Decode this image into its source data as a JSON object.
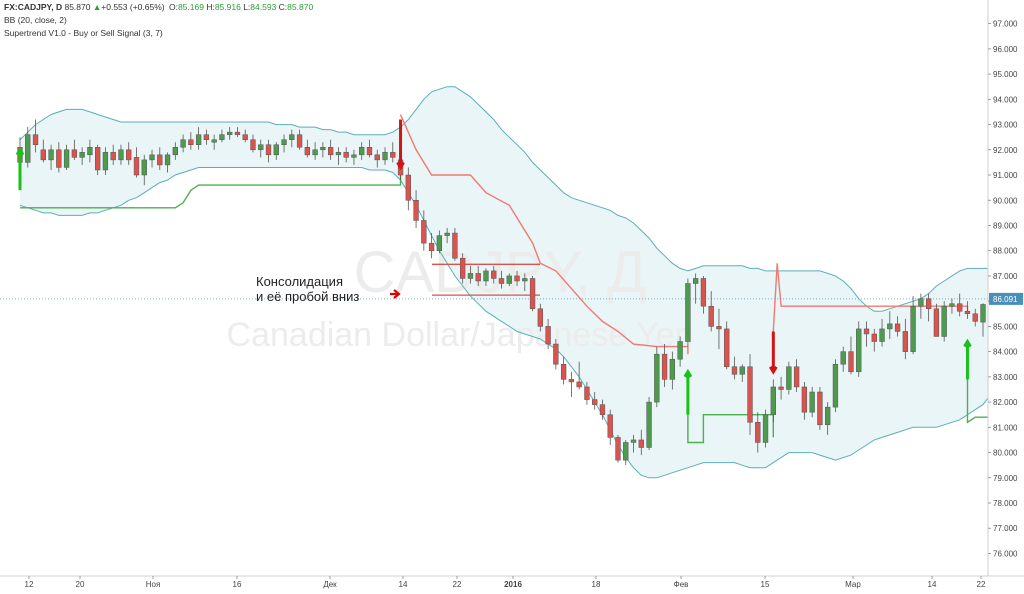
{
  "header": {
    "symbol": "FX:CADJPY, D",
    "last": "85.870",
    "change": "+0.553 (+0.65%)",
    "o_label": "O:",
    "o": "85.169",
    "h_label": "H:",
    "h": "85.916",
    "l_label": "L:",
    "l": "84.593",
    "c_label": "C:",
    "c": "85.870",
    "indicator1": "BB (20, close, 2)",
    "indicator2": "Supertrend V1.0 - Buy or Sell Signal (3, 7)"
  },
  "watermark": {
    "line1": "CADJPY, Д",
    "line2": "Canadian Dollar/Japanese Yen"
  },
  "annotation": {
    "line1": "Консолидация",
    "line2": "и её пробой вниз"
  },
  "price_label": "86.091",
  "colors": {
    "up": "#4e9a4e",
    "down": "#d9534f",
    "band": "#5aafb7",
    "band_fill": "#e9f5f6",
    "supertrend_up": "#4caf50",
    "supertrend_down": "#f07a72",
    "signal_buy": "#19c219",
    "signal_sell": "#d21414",
    "price_label_bg": "#4a8fb8",
    "consolidation": "#d9534f"
  },
  "chart_data": {
    "type": "candlestick",
    "title": "FX:CADJPY, D",
    "ylim": [
      75.0,
      97.5
    ],
    "yticks": [
      "76.000",
      "77.000",
      "78.000",
      "79.000",
      "80.000",
      "81.000",
      "82.000",
      "83.000",
      "84.000",
      "85.000",
      "86.000",
      "87.000",
      "88.000",
      "89.000",
      "90.000",
      "91.000",
      "92.000",
      "93.000",
      "94.000",
      "95.000",
      "96.000",
      "97.000"
    ],
    "xticks": [
      "12",
      "20",
      "Ноя",
      "16",
      "Дек",
      "14",
      "22",
      "2016",
      "18",
      "Фев",
      "15",
      "Мар",
      "14",
      "22"
    ],
    "candles": [
      [
        92.1,
        92.5,
        90.7,
        91.5
      ],
      [
        91.5,
        92.9,
        91.3,
        92.6
      ],
      [
        92.6,
        93.2,
        91.9,
        92.2
      ],
      [
        92.0,
        92.4,
        91.5,
        91.6
      ],
      [
        91.6,
        92.2,
        91.2,
        92.0
      ],
      [
        92.0,
        92.3,
        91.1,
        91.3
      ],
      [
        91.3,
        92.2,
        91.2,
        92.0
      ],
      [
        92.0,
        92.4,
        91.6,
        91.7
      ],
      [
        91.7,
        92.1,
        91.4,
        91.9
      ],
      [
        91.8,
        92.4,
        91.5,
        92.1
      ],
      [
        92.1,
        92.2,
        91.0,
        91.2
      ],
      [
        91.2,
        92.1,
        91.0,
        91.9
      ],
      [
        91.9,
        92.2,
        91.4,
        91.6
      ],
      [
        91.6,
        92.2,
        91.4,
        92.0
      ],
      [
        92.0,
        92.3,
        91.4,
        91.6
      ],
      [
        91.7,
        92.1,
        90.9,
        91.0
      ],
      [
        91.0,
        91.8,
        90.6,
        91.6
      ],
      [
        91.6,
        92.0,
        91.3,
        91.8
      ],
      [
        91.8,
        92.1,
        91.2,
        91.4
      ],
      [
        91.4,
        91.9,
        91.1,
        91.8
      ],
      [
        91.8,
        92.3,
        91.6,
        92.1
      ],
      [
        92.1,
        92.6,
        91.9,
        92.4
      ],
      [
        92.4,
        92.7,
        92.0,
        92.2
      ],
      [
        92.2,
        92.9,
        92.0,
        92.6
      ],
      [
        92.6,
        92.8,
        92.2,
        92.4
      ],
      [
        92.3,
        92.6,
        92.0,
        92.4
      ],
      [
        92.4,
        92.8,
        92.3,
        92.6
      ],
      [
        92.6,
        92.9,
        92.4,
        92.7
      ],
      [
        92.7,
        92.9,
        92.5,
        92.6
      ],
      [
        92.6,
        92.8,
        92.3,
        92.4
      ],
      [
        92.4,
        92.6,
        91.9,
        92.0
      ],
      [
        92.0,
        92.4,
        91.7,
        92.2
      ],
      [
        92.2,
        92.4,
        91.5,
        91.8
      ],
      [
        91.8,
        92.3,
        91.6,
        92.2
      ],
      [
        92.2,
        92.6,
        91.9,
        92.4
      ],
      [
        92.4,
        92.8,
        92.1,
        92.6
      ],
      [
        92.6,
        92.8,
        92.0,
        92.1
      ],
      [
        92.1,
        92.4,
        91.7,
        91.8
      ],
      [
        91.8,
        92.3,
        91.6,
        92.0
      ],
      [
        92.0,
        92.3,
        91.7,
        92.1
      ],
      [
        92.1,
        92.4,
        91.6,
        91.8
      ],
      [
        91.8,
        92.1,
        91.4,
        91.9
      ],
      [
        91.9,
        92.1,
        91.5,
        91.7
      ],
      [
        91.7,
        92.0,
        91.4,
        91.8
      ],
      [
        91.8,
        92.3,
        91.6,
        92.1
      ],
      [
        92.1,
        92.4,
        91.7,
        91.8
      ],
      [
        91.8,
        92.0,
        91.3,
        91.6
      ],
      [
        91.6,
        92.1,
        91.4,
        91.9
      ],
      [
        91.9,
        92.3,
        91.5,
        91.7
      ],
      [
        91.6,
        91.9,
        90.8,
        91.0
      ],
      [
        91.0,
        91.3,
        89.6,
        90.0
      ],
      [
        90.0,
        90.4,
        88.9,
        89.2
      ],
      [
        89.2,
        89.6,
        88.0,
        88.3
      ],
      [
        88.3,
        88.7,
        87.7,
        88.0
      ],
      [
        88.0,
        88.8,
        87.9,
        88.6
      ],
      [
        88.6,
        88.9,
        88.3,
        88.7
      ],
      [
        88.7,
        88.9,
        87.6,
        87.7
      ],
      [
        87.7,
        87.9,
        86.7,
        86.9
      ],
      [
        86.9,
        87.4,
        86.7,
        87.1
      ],
      [
        87.1,
        87.4,
        86.6,
        86.8
      ],
      [
        86.8,
        87.3,
        86.6,
        87.2
      ],
      [
        87.2,
        87.4,
        86.7,
        86.9
      ],
      [
        86.9,
        87.2,
        86.5,
        86.7
      ],
      [
        86.7,
        87.1,
        86.6,
        87.0
      ],
      [
        87.0,
        87.2,
        86.6,
        86.8
      ],
      [
        86.8,
        87.1,
        86.4,
        86.9
      ],
      [
        86.9,
        87.0,
        85.6,
        85.7
      ],
      [
        85.7,
        85.9,
        84.8,
        85.0
      ],
      [
        85.0,
        85.3,
        84.1,
        84.3
      ],
      [
        84.3,
        84.5,
        83.3,
        83.5
      ],
      [
        83.5,
        83.8,
        82.7,
        82.9
      ],
      [
        82.9,
        83.2,
        82.2,
        82.8
      ],
      [
        82.8,
        83.6,
        82.5,
        82.6
      ],
      [
        82.6,
        82.8,
        81.9,
        82.1
      ],
      [
        82.1,
        82.4,
        81.7,
        81.9
      ],
      [
        81.9,
        82.1,
        81.3,
        81.5
      ],
      [
        81.5,
        81.7,
        80.3,
        80.6
      ],
      [
        80.6,
        80.7,
        79.6,
        79.7
      ],
      [
        79.7,
        80.5,
        79.5,
        80.4
      ],
      [
        80.4,
        80.7,
        80.0,
        80.5
      ],
      [
        80.5,
        80.9,
        79.9,
        80.2
      ],
      [
        80.2,
        82.2,
        80.1,
        82.0
      ],
      [
        82.0,
        84.2,
        81.8,
        83.9
      ],
      [
        83.9,
        84.3,
        82.6,
        82.9
      ],
      [
        82.9,
        84.0,
        82.5,
        83.7
      ],
      [
        83.7,
        84.6,
        83.4,
        84.4
      ],
      [
        84.4,
        86.9,
        84.2,
        86.7
      ],
      [
        86.7,
        87.1,
        85.9,
        86.9
      ],
      [
        86.9,
        87.0,
        85.5,
        85.8
      ],
      [
        85.8,
        86.4,
        84.8,
        85.0
      ],
      [
        85.0,
        85.7,
        84.1,
        84.9
      ],
      [
        84.9,
        85.2,
        83.3,
        83.4
      ],
      [
        83.4,
        83.8,
        82.9,
        83.1
      ],
      [
        83.1,
        83.5,
        82.8,
        83.4
      ],
      [
        83.4,
        83.9,
        80.7,
        81.2
      ],
      [
        81.2,
        81.6,
        80.0,
        80.4
      ],
      [
        80.4,
        81.7,
        80.2,
        81.5
      ],
      [
        81.5,
        82.9,
        81.2,
        82.6
      ],
      [
        82.6,
        83.0,
        82.1,
        82.5
      ],
      [
        82.5,
        83.6,
        82.3,
        83.4
      ],
      [
        83.4,
        83.7,
        82.4,
        82.6
      ],
      [
        82.6,
        82.8,
        81.3,
        81.6
      ],
      [
        81.6,
        82.6,
        81.4,
        82.4
      ],
      [
        82.4,
        82.6,
        80.9,
        81.1
      ],
      [
        81.1,
        82.0,
        80.7,
        81.8
      ],
      [
        81.8,
        83.7,
        81.6,
        83.5
      ],
      [
        83.5,
        84.2,
        83.2,
        84.0
      ],
      [
        84.0,
        84.6,
        83.1,
        83.2
      ],
      [
        83.2,
        85.2,
        83.0,
        84.9
      ],
      [
        84.9,
        85.2,
        84.2,
        84.7
      ],
      [
        84.7,
        84.9,
        84.0,
        84.4
      ],
      [
        84.4,
        85.3,
        84.2,
        84.9
      ],
      [
        84.9,
        85.6,
        84.5,
        85.1
      ],
      [
        85.1,
        85.4,
        84.6,
        84.8
      ],
      [
        84.8,
        85.3,
        83.7,
        84.0
      ],
      [
        84.0,
        86.2,
        83.9,
        85.8
      ],
      [
        85.8,
        86.3,
        85.3,
        86.1
      ],
      [
        86.1,
        86.3,
        85.2,
        85.7
      ],
      [
        85.7,
        85.9,
        84.6,
        84.6
      ],
      [
        84.6,
        86.0,
        84.4,
        85.8
      ],
      [
        85.8,
        86.1,
        85.5,
        85.9
      ],
      [
        85.9,
        86.3,
        85.4,
        85.6
      ],
      [
        85.6,
        86.0,
        85.3,
        85.5
      ],
      [
        85.5,
        85.7,
        85.0,
        85.2
      ],
      [
        85.17,
        85.92,
        84.59,
        85.87
      ]
    ],
    "series": [
      {
        "name": "BB (20, close, 2)",
        "upper": [
          92.4,
          92.7,
          93.0,
          93.2,
          93.4,
          93.5,
          93.6,
          93.6,
          93.6,
          93.5,
          93.4,
          93.3,
          93.2,
          93.1,
          93.1,
          93.1,
          93.1,
          93.1,
          93.1,
          93.1,
          93.1,
          93.1,
          93.1,
          93.1,
          93.1,
          93.1,
          93.1,
          93.1,
          93.1,
          93.1,
          93.1,
          93.1,
          93.1,
          93.0,
          93.0,
          93.0,
          92.9,
          92.9,
          92.9,
          92.8,
          92.8,
          92.7,
          92.7,
          92.6,
          92.6,
          92.6,
          92.6,
          92.6,
          92.7,
          92.9,
          93.2,
          93.6,
          94.0,
          94.3,
          94.4,
          94.5,
          94.5,
          94.3,
          94.1,
          93.8,
          93.5,
          93.2,
          92.8,
          92.5,
          92.2,
          91.9,
          91.5,
          91.2,
          90.9,
          90.6,
          90.3,
          90.1,
          90.0,
          89.9,
          89.8,
          89.7,
          89.6,
          89.4,
          89.3,
          89.1,
          88.8,
          88.5,
          88.1,
          87.8,
          87.5,
          87.3,
          87.2,
          87.3,
          87.4,
          87.4,
          87.4,
          87.4,
          87.4,
          87.4,
          87.3,
          87.3,
          87.2,
          87.2,
          87.2,
          87.2,
          87.2,
          87.2,
          87.2,
          87.2,
          87.1,
          87.0,
          86.8,
          86.5,
          86.1,
          85.8,
          85.6,
          85.6,
          85.7,
          85.8,
          85.9,
          86.0,
          86.1,
          86.3,
          86.6,
          86.8,
          87.0,
          87.2,
          87.3,
          87.3,
          87.3,
          87.3,
          87.2
        ],
        "lower": [
          89.8,
          89.7,
          89.6,
          89.5,
          89.5,
          89.4,
          89.4,
          89.4,
          89.4,
          89.5,
          89.5,
          89.6,
          89.7,
          89.8,
          90.0,
          90.1,
          90.3,
          90.5,
          90.7,
          90.8,
          91.0,
          91.1,
          91.2,
          91.3,
          91.3,
          91.3,
          91.3,
          91.3,
          91.3,
          91.3,
          91.3,
          91.3,
          91.3,
          91.3,
          91.3,
          91.3,
          91.3,
          91.3,
          91.3,
          91.3,
          91.3,
          91.3,
          91.3,
          91.3,
          91.3,
          91.2,
          91.2,
          91.2,
          91.1,
          90.8,
          90.3,
          89.8,
          89.2,
          88.6,
          88.0,
          87.5,
          87.0,
          86.6,
          86.2,
          85.9,
          85.6,
          85.4,
          85.2,
          85.0,
          84.8,
          84.7,
          84.6,
          84.5,
          84.3,
          84.1,
          83.8,
          83.4,
          83.0,
          82.5,
          82.0,
          81.5,
          80.9,
          80.3,
          79.8,
          79.4,
          79.1,
          79.0,
          79.0,
          79.1,
          79.2,
          79.3,
          79.4,
          79.5,
          79.6,
          79.6,
          79.6,
          79.6,
          79.6,
          79.5,
          79.4,
          79.4,
          79.4,
          79.6,
          79.8,
          80.0,
          80.0,
          80.0,
          80.0,
          79.9,
          79.8,
          79.7,
          79.8,
          79.9,
          80.1,
          80.3,
          80.5,
          80.6,
          80.7,
          80.8,
          80.9,
          81.0,
          81.0,
          81.0,
          81.0,
          81.1,
          81.2,
          81.3,
          81.5,
          81.7,
          81.9,
          82.3,
          82.8
        ]
      },
      {
        "name": "Supertrend V1.0 - Buy or Sell Signal (3, 7)"
      }
    ]
  }
}
